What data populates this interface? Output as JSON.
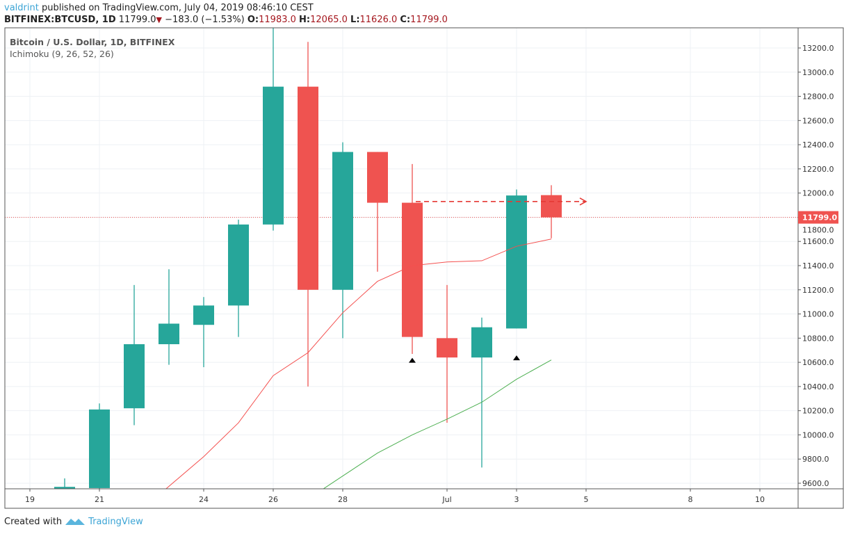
{
  "header": {
    "author": "valdrint",
    "published": "published on TradingView.com, July 04, 2019 08:46:10 CEST",
    "symbol": "BITFINEX:BTCUSD, 1D",
    "last": "11799.0",
    "change": "−183.0 (−1.53%)",
    "o_label": "O:",
    "o": "11983.0",
    "h_label": "H:",
    "h": "12065.0",
    "l_label": "L:",
    "l": "11626.0",
    "c_label": "C:",
    "c": "11799.0"
  },
  "legend": {
    "title": "Bitcoin / U.S. Dollar, 1D, BITFINEX",
    "indicator": "Ichimoku (9, 26, 52, 26)"
  },
  "footer": {
    "created": "Created with",
    "brand": "TradingView"
  },
  "chart_data": {
    "type": "candlestick",
    "colors": {
      "up": "#26a69a",
      "down": "#ef5350",
      "line1": "#f4504f",
      "line2": "#4caf50",
      "price_line": "#ef5350"
    },
    "ylim": [
      9540,
      13360
    ],
    "yticks": [
      "9600.0",
      "9800.0",
      "10000.0",
      "10200.0",
      "10400.0",
      "10600.0",
      "10800.0",
      "11000.0",
      "11200.0",
      "11400.0",
      "11600.0",
      "11800.0",
      "12000.0",
      "12200.0",
      "12400.0",
      "12600.0",
      "12800.0",
      "13000.0",
      "13200.0"
    ],
    "xticks": [
      {
        "label": "19",
        "day": 0
      },
      {
        "label": "21",
        "day": 2
      },
      {
        "label": "24",
        "day": 5
      },
      {
        "label": "26",
        "day": 7
      },
      {
        "label": "28",
        "day": 9
      },
      {
        "label": "Jul",
        "day": 12
      },
      {
        "label": "3",
        "day": 14
      },
      {
        "label": "5",
        "day": 16
      },
      {
        "label": "8",
        "day": 19
      },
      {
        "label": "10",
        "day": 21
      }
    ],
    "candles": [
      {
        "date": "2019-06-20",
        "o": 9290,
        "h": 9640,
        "l": 9080,
        "c": 9570
      },
      {
        "date": "2019-06-21",
        "o": 9560,
        "h": 10260,
        "l": 9540,
        "c": 10210
      },
      {
        "date": "2019-06-22",
        "o": 10220,
        "h": 11240,
        "l": 10080,
        "c": 10750
      },
      {
        "date": "2019-06-23",
        "o": 10750,
        "h": 11370,
        "l": 10580,
        "c": 10920
      },
      {
        "date": "2019-06-24",
        "o": 10910,
        "h": 11140,
        "l": 10560,
        "c": 11070
      },
      {
        "date": "2019-06-25",
        "o": 11070,
        "h": 11780,
        "l": 10810,
        "c": 11740
      },
      {
        "date": "2019-06-26",
        "o": 11740,
        "h": 13800,
        "l": 11690,
        "c": 12880
      },
      {
        "date": "2019-06-27",
        "o": 12880,
        "h": 13250,
        "l": 10400,
        "c": 11200
      },
      {
        "date": "2019-06-28",
        "o": 11200,
        "h": 12420,
        "l": 10800,
        "c": 12340
      },
      {
        "date": "2019-06-29",
        "o": 12340,
        "h": 12340,
        "l": 11350,
        "c": 11920
      },
      {
        "date": "2019-06-30",
        "o": 11920,
        "h": 12240,
        "l": 10670,
        "c": 10810
      },
      {
        "date": "2019-07-01",
        "o": 10800,
        "h": 11240,
        "l": 10100,
        "c": 10640
      },
      {
        "date": "2019-07-02",
        "o": 10640,
        "h": 10970,
        "l": 9730,
        "c": 10890
      },
      {
        "date": "2019-07-03",
        "o": 10880,
        "h": 12030,
        "l": 10880,
        "c": 11980
      },
      {
        "date": "2019-07-04",
        "o": 11983,
        "h": 12065,
        "l": 11626,
        "c": 11799
      }
    ],
    "ichimoku_red": [
      {
        "day": 3.9,
        "v": 9550
      },
      {
        "day": 5,
        "v": 9820
      },
      {
        "day": 6,
        "v": 10100
      },
      {
        "day": 7,
        "v": 10490
      },
      {
        "day": 8,
        "v": 10680
      },
      {
        "day": 9,
        "v": 11010
      },
      {
        "day": 10,
        "v": 11270
      },
      {
        "day": 11,
        "v": 11400
      },
      {
        "day": 12,
        "v": 11430
      },
      {
        "day": 13,
        "v": 11440
      },
      {
        "day": 14,
        "v": 11560
      },
      {
        "day": 15,
        "v": 11620
      }
    ],
    "ichimoku_green": [
      {
        "day": 8.45,
        "v": 9555
      },
      {
        "day": 9,
        "v": 9660
      },
      {
        "day": 10,
        "v": 9850
      },
      {
        "day": 11,
        "v": 10000
      },
      {
        "day": 12,
        "v": 10130
      },
      {
        "day": 13,
        "v": 10270
      },
      {
        "day": 14,
        "v": 10460
      },
      {
        "day": 15,
        "v": 10620
      }
    ],
    "markers": [
      {
        "day": 11,
        "v": 10620
      },
      {
        "day": 14,
        "v": 10640
      }
    ],
    "projection_arrow": {
      "from_day": 11.1,
      "to_day": 16,
      "v": 11930
    },
    "last_price": 11799.0,
    "last_price_label": "11799.0"
  }
}
